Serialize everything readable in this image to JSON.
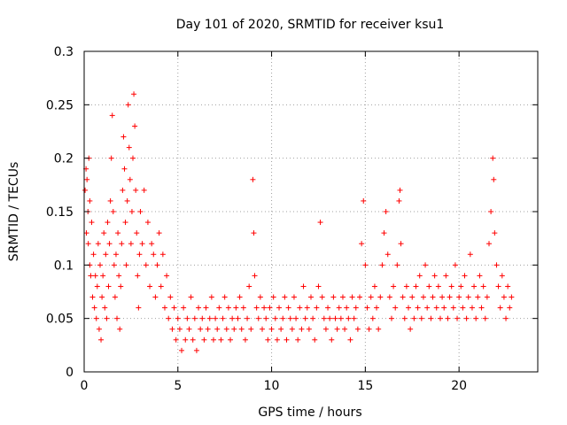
{
  "chart_data": {
    "type": "scatter",
    "title": "Day 101 of 2020, SRMTID for receiver ksu1",
    "xlabel": "GPS time / hours",
    "ylabel": "SRMTID / TECUs",
    "xlim": [
      0,
      24.2
    ],
    "ylim": [
      0,
      0.3
    ],
    "xticks": [
      0,
      5,
      10,
      15,
      20
    ],
    "xtick_labels": [
      "0",
      "5",
      "10",
      "15",
      "20"
    ],
    "yticks": [
      0,
      0.05,
      0.1,
      0.15,
      0.2,
      0.25,
      0.3
    ],
    "ytick_labels": [
      "0",
      "0.05",
      "0.1",
      "0.15",
      "0.2",
      "0.25",
      "0.3"
    ],
    "grid": true,
    "marker": "plus",
    "color": "#ff0000",
    "series": [
      {
        "name": "ksu1",
        "points": [
          [
            0.05,
            0.17
          ],
          [
            0.1,
            0.19
          ],
          [
            0.12,
            0.13
          ],
          [
            0.15,
            0.18
          ],
          [
            0.2,
            0.15
          ],
          [
            0.22,
            0.12
          ],
          [
            0.25,
            0.2
          ],
          [
            0.3,
            0.1
          ],
          [
            0.3,
            0.16
          ],
          [
            0.35,
            0.09
          ],
          [
            0.4,
            0.14
          ],
          [
            0.45,
            0.07
          ],
          [
            0.5,
            0.11
          ],
          [
            0.55,
            0.06
          ],
          [
            0.6,
            0.09
          ],
          [
            0.65,
            0.05
          ],
          [
            0.7,
            0.08
          ],
          [
            0.75,
            0.12
          ],
          [
            0.8,
            0.04
          ],
          [
            0.85,
            0.1
          ],
          [
            0.9,
            0.03
          ],
          [
            0.95,
            0.07
          ],
          [
            1.0,
            0.09
          ],
          [
            1.05,
            0.13
          ],
          [
            1.1,
            0.06
          ],
          [
            1.15,
            0.11
          ],
          [
            1.2,
            0.05
          ],
          [
            1.25,
            0.14
          ],
          [
            1.3,
            0.08
          ],
          [
            1.35,
            0.12
          ],
          [
            1.4,
            0.16
          ],
          [
            1.45,
            0.2
          ],
          [
            1.5,
            0.24
          ],
          [
            1.55,
            0.15
          ],
          [
            1.6,
            0.1
          ],
          [
            1.65,
            0.07
          ],
          [
            1.7,
            0.11
          ],
          [
            1.75,
            0.05
          ],
          [
            1.8,
            0.13
          ],
          [
            1.85,
            0.09
          ],
          [
            1.9,
            0.04
          ],
          [
            1.95,
            0.08
          ],
          [
            2.0,
            0.12
          ],
          [
            2.05,
            0.17
          ],
          [
            2.1,
            0.22
          ],
          [
            2.15,
            0.19
          ],
          [
            2.2,
            0.14
          ],
          [
            2.25,
            0.1
          ],
          [
            2.3,
            0.16
          ],
          [
            2.35,
            0.25
          ],
          [
            2.4,
            0.21
          ],
          [
            2.45,
            0.18
          ],
          [
            2.5,
            0.12
          ],
          [
            2.55,
            0.15
          ],
          [
            2.6,
            0.2
          ],
          [
            2.65,
            0.26
          ],
          [
            2.7,
            0.23
          ],
          [
            2.75,
            0.17
          ],
          [
            2.8,
            0.13
          ],
          [
            2.85,
            0.09
          ],
          [
            2.9,
            0.06
          ],
          [
            2.95,
            0.11
          ],
          [
            3.0,
            0.15
          ],
          [
            3.1,
            0.12
          ],
          [
            3.2,
            0.17
          ],
          [
            3.3,
            0.1
          ],
          [
            3.4,
            0.14
          ],
          [
            3.5,
            0.08
          ],
          [
            3.6,
            0.12
          ],
          [
            3.7,
            0.11
          ],
          [
            3.8,
            0.07
          ],
          [
            3.9,
            0.1
          ],
          [
            4.0,
            0.13
          ],
          [
            4.1,
            0.08
          ],
          [
            4.2,
            0.11
          ],
          [
            4.3,
            0.06
          ],
          [
            4.4,
            0.09
          ],
          [
            4.5,
            0.05
          ],
          [
            4.6,
            0.07
          ],
          [
            4.7,
            0.04
          ],
          [
            4.8,
            0.06
          ],
          [
            4.9,
            0.03
          ],
          [
            5.0,
            0.05
          ],
          [
            5.1,
            0.04
          ],
          [
            5.2,
            0.02
          ],
          [
            5.3,
            0.06
          ],
          [
            5.4,
            0.03
          ],
          [
            5.5,
            0.05
          ],
          [
            5.6,
            0.04
          ],
          [
            5.7,
            0.07
          ],
          [
            5.8,
            0.03
          ],
          [
            5.9,
            0.05
          ],
          [
            6.0,
            0.02
          ],
          [
            6.1,
            0.06
          ],
          [
            6.2,
            0.04
          ],
          [
            6.3,
            0.05
          ],
          [
            6.4,
            0.03
          ],
          [
            6.5,
            0.06
          ],
          [
            6.6,
            0.04
          ],
          [
            6.7,
            0.05
          ],
          [
            6.8,
            0.07
          ],
          [
            6.9,
            0.03
          ],
          [
            7.0,
            0.05
          ],
          [
            7.1,
            0.04
          ],
          [
            7.2,
            0.06
          ],
          [
            7.3,
            0.03
          ],
          [
            7.4,
            0.05
          ],
          [
            7.5,
            0.07
          ],
          [
            7.6,
            0.04
          ],
          [
            7.7,
            0.06
          ],
          [
            7.8,
            0.03
          ],
          [
            7.9,
            0.05
          ],
          [
            8.0,
            0.04
          ],
          [
            8.1,
            0.06
          ],
          [
            8.2,
            0.05
          ],
          [
            8.3,
            0.07
          ],
          [
            8.4,
            0.04
          ],
          [
            8.5,
            0.06
          ],
          [
            8.6,
            0.03
          ],
          [
            8.7,
            0.05
          ],
          [
            8.8,
            0.08
          ],
          [
            8.9,
            0.04
          ],
          [
            9.0,
            0.18
          ],
          [
            9.05,
            0.13
          ],
          [
            9.1,
            0.09
          ],
          [
            9.2,
            0.06
          ],
          [
            9.3,
            0.05
          ],
          [
            9.4,
            0.07
          ],
          [
            9.5,
            0.04
          ],
          [
            9.6,
            0.06
          ],
          [
            9.7,
            0.05
          ],
          [
            9.8,
            0.03
          ],
          [
            9.9,
            0.06
          ],
          [
            10.0,
            0.04
          ],
          [
            10.1,
            0.07
          ],
          [
            10.2,
            0.05
          ],
          [
            10.3,
            0.03
          ],
          [
            10.4,
            0.06
          ],
          [
            10.5,
            0.04
          ],
          [
            10.6,
            0.05
          ],
          [
            10.7,
            0.07
          ],
          [
            10.8,
            0.03
          ],
          [
            10.9,
            0.06
          ],
          [
            11.0,
            0.05
          ],
          [
            11.1,
            0.04
          ],
          [
            11.2,
            0.07
          ],
          [
            11.3,
            0.05
          ],
          [
            11.4,
            0.03
          ],
          [
            11.5,
            0.06
          ],
          [
            11.6,
            0.04
          ],
          [
            11.7,
            0.08
          ],
          [
            11.8,
            0.05
          ],
          [
            11.9,
            0.06
          ],
          [
            12.0,
            0.04
          ],
          [
            12.1,
            0.07
          ],
          [
            12.2,
            0.05
          ],
          [
            12.3,
            0.03
          ],
          [
            12.4,
            0.06
          ],
          [
            12.5,
            0.08
          ],
          [
            12.6,
            0.14
          ],
          [
            12.7,
            0.07
          ],
          [
            12.8,
            0.05
          ],
          [
            12.9,
            0.04
          ],
          [
            13.0,
            0.06
          ],
          [
            13.1,
            0.05
          ],
          [
            13.2,
            0.03
          ],
          [
            13.3,
            0.07
          ],
          [
            13.4,
            0.05
          ],
          [
            13.5,
            0.04
          ],
          [
            13.6,
            0.06
          ],
          [
            13.7,
            0.05
          ],
          [
            13.8,
            0.07
          ],
          [
            13.9,
            0.04
          ],
          [
            14.0,
            0.06
          ],
          [
            14.1,
            0.05
          ],
          [
            14.2,
            0.03
          ],
          [
            14.3,
            0.07
          ],
          [
            14.4,
            0.05
          ],
          [
            14.5,
            0.06
          ],
          [
            14.6,
            0.04
          ],
          [
            14.7,
            0.07
          ],
          [
            14.8,
            0.12
          ],
          [
            14.9,
            0.16
          ],
          [
            15.0,
            0.1
          ],
          [
            15.1,
            0.06
          ],
          [
            15.2,
            0.04
          ],
          [
            15.3,
            0.07
          ],
          [
            15.4,
            0.05
          ],
          [
            15.5,
            0.08
          ],
          [
            15.6,
            0.06
          ],
          [
            15.7,
            0.04
          ],
          [
            15.8,
            0.07
          ],
          [
            15.9,
            0.1
          ],
          [
            16.0,
            0.13
          ],
          [
            16.1,
            0.15
          ],
          [
            16.2,
            0.11
          ],
          [
            16.3,
            0.07
          ],
          [
            16.4,
            0.05
          ],
          [
            16.5,
            0.08
          ],
          [
            16.6,
            0.06
          ],
          [
            16.7,
            0.1
          ],
          [
            16.8,
            0.16
          ],
          [
            16.85,
            0.17
          ],
          [
            16.9,
            0.12
          ],
          [
            17.0,
            0.07
          ],
          [
            17.1,
            0.05
          ],
          [
            17.2,
            0.08
          ],
          [
            17.3,
            0.06
          ],
          [
            17.4,
            0.04
          ],
          [
            17.5,
            0.07
          ],
          [
            17.6,
            0.05
          ],
          [
            17.7,
            0.08
          ],
          [
            17.8,
            0.06
          ],
          [
            17.9,
            0.09
          ],
          [
            18.0,
            0.05
          ],
          [
            18.1,
            0.07
          ],
          [
            18.2,
            0.1
          ],
          [
            18.3,
            0.06
          ],
          [
            18.4,
            0.08
          ],
          [
            18.5,
            0.05
          ],
          [
            18.6,
            0.07
          ],
          [
            18.7,
            0.09
          ],
          [
            18.8,
            0.06
          ],
          [
            18.9,
            0.08
          ],
          [
            19.0,
            0.05
          ],
          [
            19.1,
            0.07
          ],
          [
            19.2,
            0.06
          ],
          [
            19.3,
            0.09
          ],
          [
            19.4,
            0.05
          ],
          [
            19.5,
            0.07
          ],
          [
            19.6,
            0.08
          ],
          [
            19.7,
            0.06
          ],
          [
            19.8,
            0.1
          ],
          [
            19.9,
            0.05
          ],
          [
            20.0,
            0.07
          ],
          [
            20.1,
            0.08
          ],
          [
            20.2,
            0.06
          ],
          [
            20.3,
            0.09
          ],
          [
            20.4,
            0.05
          ],
          [
            20.5,
            0.07
          ],
          [
            20.6,
            0.11
          ],
          [
            20.7,
            0.06
          ],
          [
            20.8,
            0.08
          ],
          [
            20.9,
            0.05
          ],
          [
            21.0,
            0.07
          ],
          [
            21.1,
            0.09
          ],
          [
            21.2,
            0.06
          ],
          [
            21.3,
            0.08
          ],
          [
            21.4,
            0.05
          ],
          [
            21.5,
            0.07
          ],
          [
            21.6,
            0.12
          ],
          [
            21.7,
            0.15
          ],
          [
            21.8,
            0.2
          ],
          [
            21.85,
            0.18
          ],
          [
            21.9,
            0.13
          ],
          [
            22.0,
            0.1
          ],
          [
            22.1,
            0.08
          ],
          [
            22.2,
            0.06
          ],
          [
            22.3,
            0.09
          ],
          [
            22.4,
            0.07
          ],
          [
            22.5,
            0.05
          ],
          [
            22.6,
            0.08
          ],
          [
            22.7,
            0.06
          ],
          [
            22.8,
            0.07
          ]
        ]
      }
    ]
  }
}
